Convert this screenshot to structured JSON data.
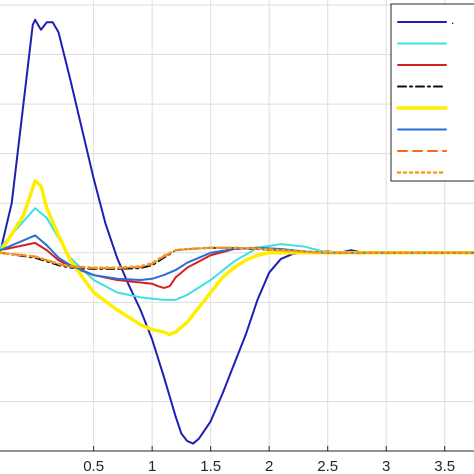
{
  "chart_data": {
    "type": "line",
    "title": "",
    "xlabel": "",
    "ylabel": "",
    "xlim": [
      -0.3,
      3.75
    ],
    "ylim": [
      -8,
      10.2
    ],
    "grid": true,
    "legend_position": "top-right",
    "x_ticks": [
      0.5,
      1,
      1.5,
      2,
      2.5,
      3,
      3.5
    ],
    "x_tick_labels": [
      "0.5",
      "1",
      "1.5",
      "2",
      "2.5",
      "3",
      "3.5"
    ],
    "y_gridlines": [
      -8,
      -6,
      -4,
      -2,
      0,
      2,
      4,
      6,
      8,
      10
    ],
    "series": [
      {
        "legend_text": ".",
        "color": "#1f1fb4",
        "dash": "solid",
        "width": 2,
        "x": [
          -0.3,
          -0.2,
          -0.1,
          -0.02,
          0.0,
          0.05,
          0.1,
          0.15,
          0.2,
          0.3,
          0.4,
          0.5,
          0.6,
          0.7,
          0.8,
          0.9,
          1.0,
          1.1,
          1.2,
          1.25,
          1.3,
          1.35,
          1.4,
          1.5,
          1.6,
          1.7,
          1.8,
          1.9,
          2.0,
          2.1,
          2.2,
          2.3,
          2.4,
          2.5,
          2.6,
          2.7,
          2.8,
          2.9,
          3.0,
          3.2,
          3.4,
          3.6,
          3.75
        ],
        "y": [
          0,
          2.0,
          6.0,
          9.2,
          9.4,
          9.0,
          9.3,
          9.3,
          8.9,
          7.0,
          5.0,
          3.0,
          1.2,
          -0.2,
          -1.3,
          -2.3,
          -3.5,
          -5.0,
          -6.6,
          -7.3,
          -7.6,
          -7.7,
          -7.5,
          -6.8,
          -5.7,
          -4.5,
          -3.3,
          -1.9,
          -0.8,
          -0.25,
          -0.05,
          0.0,
          0.02,
          0.05,
          0.0,
          0.1,
          0.0,
          0.0,
          0.0,
          0.0,
          0.0,
          0.0,
          0.0
        ]
      },
      {
        "legend_text": "",
        "color": "#3fe0e0",
        "dash": "solid",
        "width": 2,
        "x": [
          -0.3,
          0.0,
          0.1,
          0.2,
          0.3,
          0.5,
          0.7,
          0.9,
          1.0,
          1.1,
          1.2,
          1.3,
          1.5,
          1.7,
          1.9,
          2.1,
          2.3,
          2.5,
          3.0,
          3.75
        ],
        "y": [
          0.2,
          1.8,
          1.4,
          0.6,
          -0.2,
          -1.1,
          -1.6,
          -1.8,
          -1.85,
          -1.9,
          -1.9,
          -1.7,
          -1.1,
          -0.35,
          0.2,
          0.35,
          0.25,
          0.0,
          0.0,
          0.0
        ]
      },
      {
        "legend_text": "",
        "color": "#d62020",
        "dash": "solid",
        "width": 2,
        "x": [
          -0.3,
          0.0,
          0.1,
          0.2,
          0.3,
          0.5,
          0.7,
          0.9,
          1.0,
          1.05,
          1.1,
          1.15,
          1.2,
          1.3,
          1.5,
          1.7,
          1.9,
          2.1,
          2.3,
          2.5,
          3.0,
          3.75
        ],
        "y": [
          0.1,
          0.4,
          0.1,
          -0.3,
          -0.55,
          -0.9,
          -1.1,
          -1.2,
          -1.25,
          -1.35,
          -1.42,
          -1.35,
          -1.0,
          -0.6,
          -0.1,
          0.15,
          0.2,
          0.1,
          0.0,
          0.0,
          0.0,
          0.0
        ]
      },
      {
        "legend_text": "",
        "color": "#111111",
        "dash": "dashdot",
        "width": 2,
        "x": [
          -0.3,
          0.0,
          0.1,
          0.2,
          0.3,
          0.5,
          0.7,
          0.9,
          1.0,
          1.1,
          1.2,
          1.3,
          1.5,
          1.7,
          1.9,
          2.1,
          2.3,
          2.5,
          3.0,
          3.75
        ],
        "y": [
          0.0,
          -0.2,
          -0.35,
          -0.5,
          -0.6,
          -0.65,
          -0.65,
          -0.62,
          -0.5,
          -0.2,
          0.1,
          0.15,
          0.2,
          0.18,
          0.15,
          0.1,
          0.05,
          0.0,
          0.0,
          0.0
        ]
      },
      {
        "legend_text": "",
        "color": "#ffee00",
        "dash": "solid",
        "width": 3.5,
        "x": [
          -0.3,
          -0.1,
          0.0,
          0.05,
          0.1,
          0.2,
          0.3,
          0.5,
          0.7,
          0.9,
          1.0,
          1.1,
          1.15,
          1.2,
          1.3,
          1.4,
          1.5,
          1.6,
          1.7,
          1.8,
          1.9,
          2.0,
          2.2,
          2.5,
          3.0,
          3.75
        ],
        "y": [
          0,
          1.5,
          2.9,
          2.7,
          1.8,
          0.7,
          -0.3,
          -1.6,
          -2.3,
          -2.9,
          -3.1,
          -3.2,
          -3.3,
          -3.2,
          -2.8,
          -2.2,
          -1.6,
          -1.0,
          -0.6,
          -0.3,
          -0.1,
          0.0,
          0.0,
          0.0,
          0.0,
          0.0
        ]
      },
      {
        "legend_text": "",
        "color": "#2a6fd4",
        "dash": "solid",
        "width": 2,
        "x": [
          -0.3,
          0.0,
          0.1,
          0.2,
          0.3,
          0.5,
          0.7,
          0.9,
          1.0,
          1.1,
          1.2,
          1.3,
          1.5,
          1.7,
          1.9,
          2.1,
          2.3,
          2.5,
          3.0,
          3.75
        ],
        "y": [
          0.1,
          0.7,
          0.3,
          -0.2,
          -0.5,
          -0.9,
          -1.05,
          -1.1,
          -1.05,
          -0.9,
          -0.7,
          -0.4,
          0.0,
          0.15,
          0.2,
          0.15,
          0.05,
          0.0,
          0.0,
          0.0
        ]
      },
      {
        "legend_text": "",
        "color": "#f26b1d",
        "dash": "dashed",
        "width": 2,
        "x": [
          -0.3,
          0.0,
          0.1,
          0.2,
          0.3,
          0.5,
          0.7,
          0.9,
          1.0,
          1.1,
          1.2,
          1.3,
          1.5,
          1.7,
          1.9,
          2.1,
          2.3,
          2.5,
          3.0,
          3.75
        ],
        "y": [
          0.0,
          -0.15,
          -0.3,
          -0.45,
          -0.55,
          -0.62,
          -0.62,
          -0.58,
          -0.45,
          -0.15,
          0.1,
          0.15,
          0.2,
          0.2,
          0.18,
          0.1,
          0.05,
          0.0,
          0.0,
          0.0
        ]
      },
      {
        "legend_text": "",
        "color": "#f0a020",
        "dash": "dotted",
        "width": 2.5,
        "x": [
          -0.3,
          0.0,
          0.1,
          0.2,
          0.3,
          0.5,
          0.7,
          0.9,
          1.0,
          1.1,
          1.2,
          1.3,
          1.5,
          1.7,
          1.9,
          2.1,
          2.3,
          2.5,
          3.0,
          3.75
        ],
        "y": [
          0.0,
          -0.15,
          -0.3,
          -0.45,
          -0.55,
          -0.6,
          -0.6,
          -0.55,
          -0.42,
          -0.12,
          0.1,
          0.15,
          0.2,
          0.2,
          0.17,
          0.1,
          0.04,
          0.0,
          0.0,
          0.0
        ]
      }
    ]
  }
}
